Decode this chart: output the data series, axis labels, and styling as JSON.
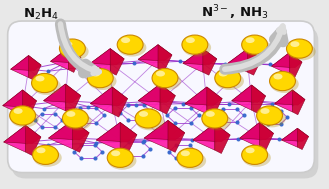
{
  "bg_color": "#e8e8e8",
  "text_left": "N$_2$H$_4$",
  "text_right": "N$^{3-}$, NH$_3$",
  "text_color": "#111111",
  "text_fontsize": 9.5,
  "text_fontweight": "bold",
  "arrow_color": "#bbbbbb",
  "au_color": "#FFD700",
  "au_edge_color": "#CC8800",
  "mof_linker_color": "#9933cc",
  "mof_node_color": "#3366cc",
  "mof_poly_bright": "#ff1aaa",
  "mof_poly_dark": "#cc0033",
  "mof_poly_mid": "#dd0066",
  "slab_face": "#f8f8ff",
  "slab_edge": "#cccccc",
  "slab_shadow": "#dddddd"
}
